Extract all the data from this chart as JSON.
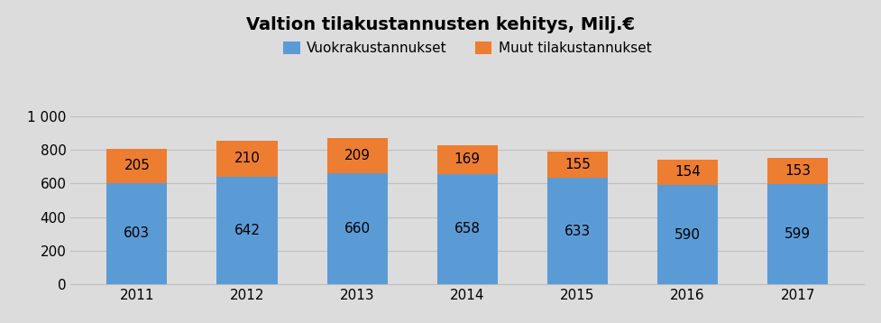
{
  "title": "Valtion tilakustannusten kehitys, Milj.€",
  "categories": [
    "2011",
    "2012",
    "2013",
    "2014",
    "2015",
    "2016",
    "2017"
  ],
  "vuokra": [
    603,
    642,
    660,
    658,
    633,
    590,
    599
  ],
  "muut": [
    205,
    210,
    209,
    169,
    155,
    154,
    153
  ],
  "vuokra_color": "#5B9BD5",
  "muut_color": "#ED7D31",
  "vuokra_label": "Vuokrakustannukset",
  "muut_label": "Muut tilakustannukset",
  "ylim": [
    0,
    1000
  ],
  "yticks": [
    0,
    200,
    400,
    600,
    800,
    1000
  ],
  "ytick_labels": [
    "0",
    "200",
    "400",
    "600",
    "800",
    "1 000"
  ],
  "bar_width": 0.55,
  "background_color": "#DCDCDC",
  "plot_bg_color": "#DCDCDC",
  "grid_color": "#BEBEBE",
  "title_fontsize": 14,
  "tick_fontsize": 11,
  "legend_fontsize": 11,
  "value_fontsize": 11
}
